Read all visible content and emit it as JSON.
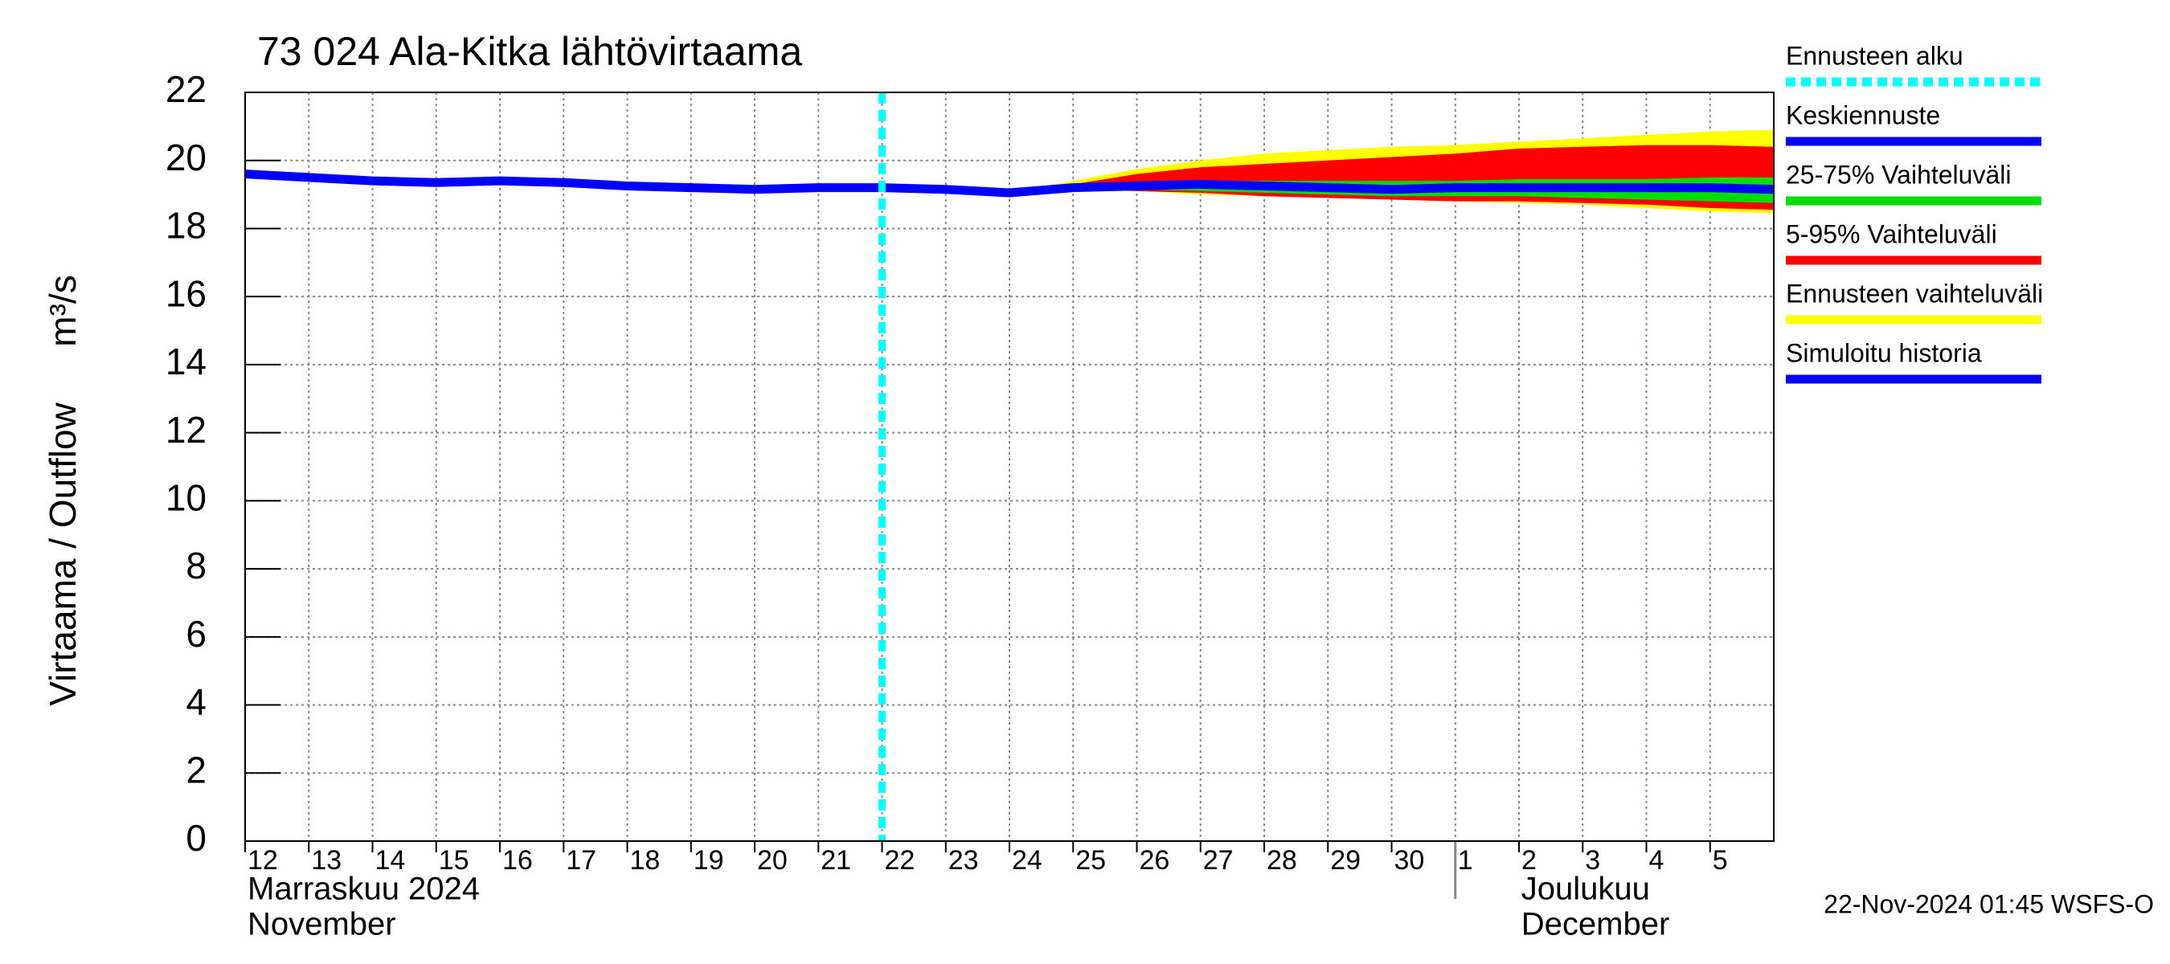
{
  "chart_data": {
    "type": "line",
    "title": "73 024 Ala-Kitka lähtövirtaama",
    "ylabel": "Virtaama / Outflow",
    "yunit": "m³/s",
    "month_labels": [
      {
        "x": "2024-11-12",
        "lines": [
          "Marraskuu 2024",
          "November"
        ]
      },
      {
        "x": "2024-12-01",
        "lines": [
          "Joulukuu",
          "December"
        ]
      }
    ],
    "footer": "22-Nov-2024 01:45 WSFS-O",
    "xlim": [
      "2024-11-12",
      "2024-12-06"
    ],
    "xticks": [
      {
        "value": "2024-11-12",
        "label": "12"
      },
      {
        "value": "2024-11-13",
        "label": "13"
      },
      {
        "value": "2024-11-14",
        "label": "14"
      },
      {
        "value": "2024-11-15",
        "label": "15"
      },
      {
        "value": "2024-11-16",
        "label": "16"
      },
      {
        "value": "2024-11-17",
        "label": "17"
      },
      {
        "value": "2024-11-18",
        "label": "18"
      },
      {
        "value": "2024-11-19",
        "label": "19"
      },
      {
        "value": "2024-11-20",
        "label": "20"
      },
      {
        "value": "2024-11-21",
        "label": "21"
      },
      {
        "value": "2024-11-22",
        "label": "22"
      },
      {
        "value": "2024-11-23",
        "label": "23"
      },
      {
        "value": "2024-11-24",
        "label": "24"
      },
      {
        "value": "2024-11-25",
        "label": "25"
      },
      {
        "value": "2024-11-26",
        "label": "26"
      },
      {
        "value": "2024-11-27",
        "label": "27"
      },
      {
        "value": "2024-11-28",
        "label": "28"
      },
      {
        "value": "2024-11-29",
        "label": "29"
      },
      {
        "value": "2024-11-30",
        "label": "30"
      },
      {
        "value": "2024-12-01",
        "label": "1"
      },
      {
        "value": "2024-12-02",
        "label": "2"
      },
      {
        "value": "2024-12-03",
        "label": "3"
      },
      {
        "value": "2024-12-04",
        "label": "4"
      },
      {
        "value": "2024-12-05",
        "label": "5"
      }
    ],
    "ylim": [
      0,
      22
    ],
    "yticks": [
      0,
      2,
      4,
      6,
      8,
      10,
      12,
      14,
      16,
      18,
      20,
      22
    ],
    "grid": true,
    "forecast_start": {
      "name": "Ennusteen alku",
      "x": "2024-11-22",
      "color": "#00ffff"
    },
    "series": [
      {
        "name": "Keskiennuste",
        "kind": "line",
        "color": "#0000ff",
        "x": [
          "2024-11-22",
          "2024-11-23",
          "2024-11-24",
          "2024-11-25",
          "2024-11-26",
          "2024-11-27",
          "2024-11-28",
          "2024-11-29",
          "2024-11-30",
          "2024-12-01",
          "2024-12-02",
          "2024-12-03",
          "2024-12-04",
          "2024-12-05",
          "2024-12-06"
        ],
        "values": [
          19.2,
          19.15,
          19.05,
          19.2,
          19.25,
          19.3,
          19.25,
          19.2,
          19.15,
          19.2,
          19.2,
          19.2,
          19.2,
          19.2,
          19.15
        ]
      },
      {
        "name": "25-75% Vaihteluväli",
        "kind": "band",
        "color": "#00dd00",
        "x": [
          "2024-11-24",
          "2024-11-25",
          "2024-11-26",
          "2024-11-27",
          "2024-11-28",
          "2024-11-29",
          "2024-11-30",
          "2024-12-01",
          "2024-12-02",
          "2024-12-03",
          "2024-12-04",
          "2024-12-05",
          "2024-12-06"
        ],
        "upper": [
          19.05,
          19.2,
          19.3,
          19.4,
          19.4,
          19.4,
          19.4,
          19.4,
          19.45,
          19.45,
          19.45,
          19.5,
          19.5
        ],
        "lower": [
          19.05,
          19.15,
          19.15,
          19.1,
          19.05,
          19.0,
          18.95,
          18.95,
          18.95,
          18.9,
          18.85,
          18.8,
          18.75
        ]
      },
      {
        "name": "5-95% Vaihteluväli",
        "kind": "band",
        "color": "#ff0000",
        "x": [
          "2024-11-24",
          "2024-11-25",
          "2024-11-26",
          "2024-11-27",
          "2024-11-28",
          "2024-11-29",
          "2024-11-30",
          "2024-12-01",
          "2024-12-02",
          "2024-12-03",
          "2024-12-04",
          "2024-12-05",
          "2024-12-06"
        ],
        "upper": [
          19.05,
          19.3,
          19.6,
          19.8,
          19.9,
          20.0,
          20.1,
          20.2,
          20.35,
          20.4,
          20.45,
          20.45,
          20.4
        ],
        "lower": [
          19.05,
          19.15,
          19.1,
          19.05,
          18.95,
          18.9,
          18.85,
          18.8,
          18.8,
          18.75,
          18.7,
          18.6,
          18.55
        ]
      },
      {
        "name": "Ennusteen vaihteluväli",
        "kind": "band",
        "color": "#ffff00",
        "x": [
          "2024-11-24",
          "2024-11-25",
          "2024-11-26",
          "2024-11-27",
          "2024-11-28",
          "2024-11-29",
          "2024-11-30",
          "2024-12-01",
          "2024-12-02",
          "2024-12-03",
          "2024-12-04",
          "2024-12-05",
          "2024-12-06"
        ],
        "upper": [
          19.05,
          19.4,
          19.75,
          20.0,
          20.2,
          20.3,
          20.4,
          20.45,
          20.55,
          20.65,
          20.75,
          20.85,
          20.9
        ],
        "lower": [
          19.05,
          19.15,
          19.1,
          19.0,
          18.95,
          18.9,
          18.85,
          18.8,
          18.75,
          18.7,
          18.6,
          18.5,
          18.45
        ]
      },
      {
        "name": "Simuloitu historia",
        "kind": "line",
        "color": "#0000ff",
        "x": [
          "2024-11-12",
          "2024-11-13",
          "2024-11-14",
          "2024-11-15",
          "2024-11-16",
          "2024-11-17",
          "2024-11-18",
          "2024-11-19",
          "2024-11-20",
          "2024-11-21",
          "2024-11-22"
        ],
        "values": [
          19.6,
          19.5,
          19.4,
          19.35,
          19.4,
          19.35,
          19.25,
          19.2,
          19.15,
          19.2,
          19.2
        ]
      }
    ]
  }
}
